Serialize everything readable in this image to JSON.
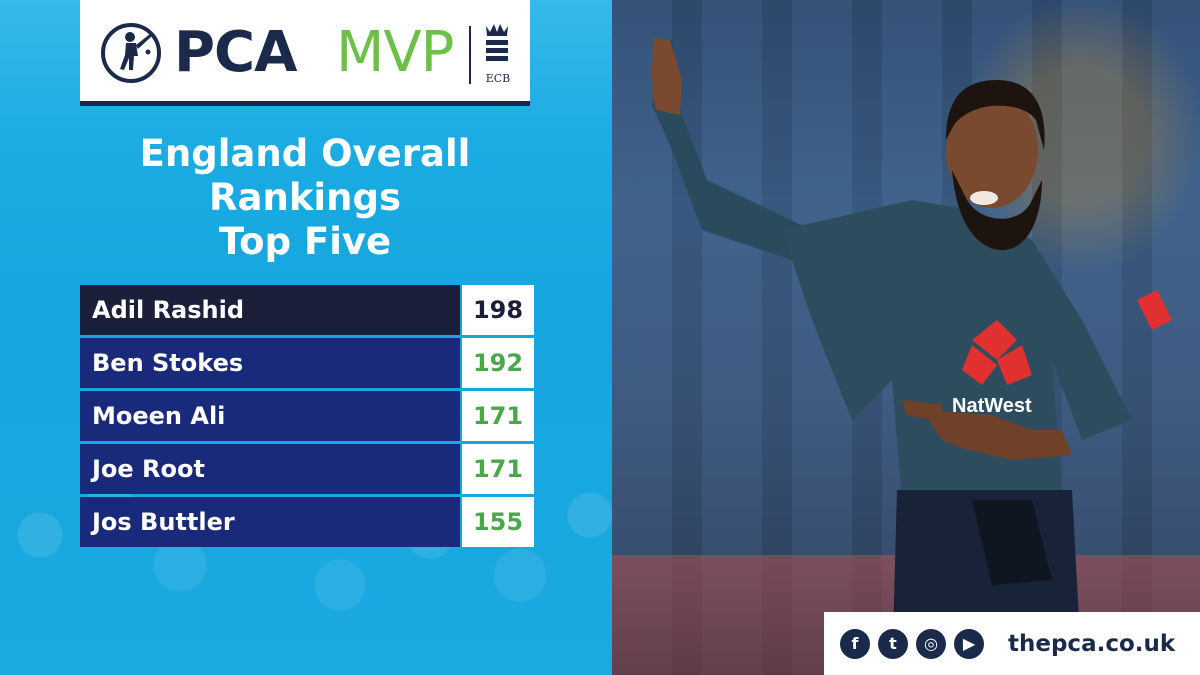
{
  "logo": {
    "pca": "PCA",
    "mvp": "MVP",
    "ecb": "ECB",
    "icon": "cricket-batsman-icon",
    "colors": {
      "navy": "#1b2a4a",
      "green": "#6cc04a"
    }
  },
  "title": {
    "line1": "England Overall",
    "line2": "Rankings",
    "line3": "Top Five"
  },
  "rankings": [
    {
      "name": "Adil Rashid",
      "score": "198"
    },
    {
      "name": "Ben Stokes",
      "score": "192"
    },
    {
      "name": "Moeen Ali",
      "score": "171"
    },
    {
      "name": "Joe Root",
      "score": "171"
    },
    {
      "name": "Jos Buttler",
      "score": "155"
    }
  ],
  "photo": {
    "shirt_sponsor": "NatWest"
  },
  "social": {
    "icons": [
      "facebook-icon",
      "twitter-icon",
      "instagram-icon",
      "youtube-icon"
    ],
    "glyphs": {
      "facebook": "f",
      "twitter": "t",
      "instagram": "◎",
      "youtube": "▶"
    },
    "website": "thepca.co.uk"
  },
  "colors": {
    "panel_blue": "#1fb1e6",
    "row_navy": "#1a2a7a",
    "row_dark": "#1c1f3a",
    "score_green": "#4aa84a"
  }
}
